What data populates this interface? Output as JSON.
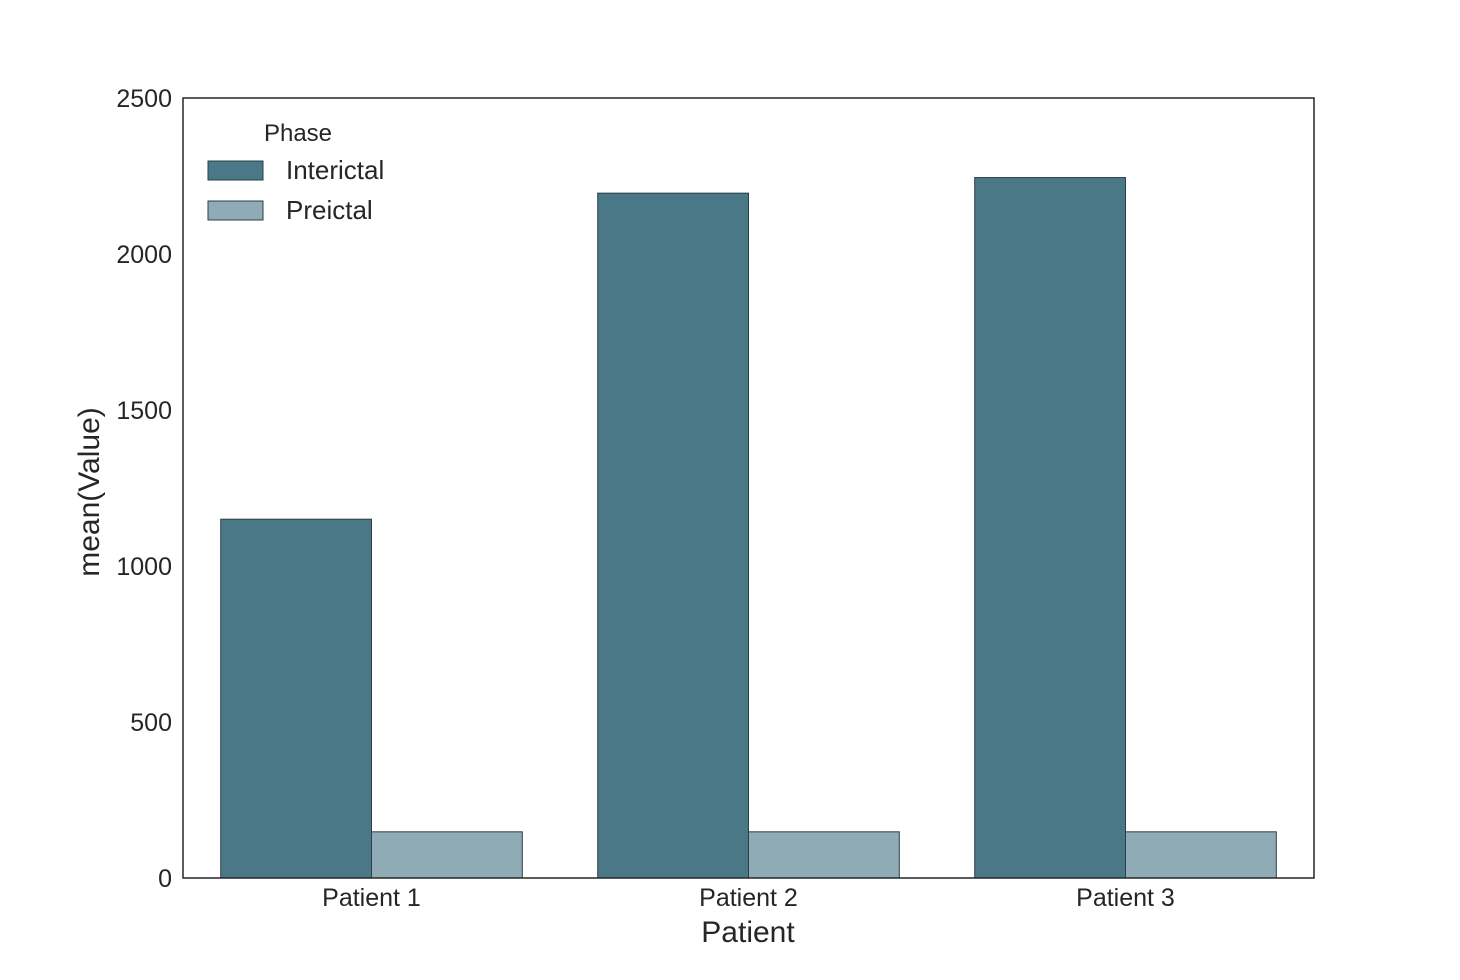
{
  "chart_data": {
    "type": "bar",
    "xlabel": "Patient",
    "ylabel": "mean(Value)",
    "categories": [
      "Patient 1",
      "Patient 2",
      "Patient 3"
    ],
    "series": [
      {
        "name": "Interictal",
        "values": [
          1150,
          2195,
          2245
        ],
        "color": "#4a7887"
      },
      {
        "name": "Preictal",
        "values": [
          148,
          148,
          148
        ],
        "color": "#8fabb5"
      }
    ],
    "ylim": [
      0,
      2500
    ],
    "yticks": [
      0,
      500,
      1000,
      1500,
      2000,
      2500
    ],
    "legend": {
      "title": "Phase",
      "placement": "top-left"
    },
    "grid": false,
    "edge_color": "#2b3f47",
    "frame_color": "#262626"
  }
}
